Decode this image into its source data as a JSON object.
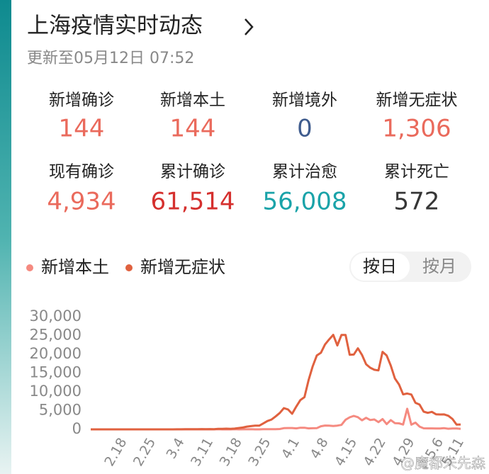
{
  "header": {
    "title": "上海疫情实时动态",
    "updated": "更新至05月12日 07:52"
  },
  "stats": [
    {
      "label": "新增确诊",
      "value": "144",
      "color": "#ea6a5c"
    },
    {
      "label": "新增本土",
      "value": "144",
      "color": "#ea6a5c"
    },
    {
      "label": "新增境外",
      "value": "0",
      "color": "#3f5c8e"
    },
    {
      "label": "新增无症状",
      "value": "1,306",
      "color": "#ea6a5c"
    },
    {
      "label": "现有确诊",
      "value": "4,934",
      "color": "#ea6a5c"
    },
    {
      "label": "累计确诊",
      "value": "61,514",
      "color": "#d5302e"
    },
    {
      "label": "累计治愈",
      "value": "56,008",
      "color": "#1aa3a9"
    },
    {
      "label": "累计死亡",
      "value": "572",
      "color": "#363636"
    }
  ],
  "toggle": {
    "options": [
      "按日",
      "按月"
    ]
  },
  "watermark": "@魔都朱先森",
  "chart_data": {
    "type": "line",
    "categories": [
      null,
      null,
      null,
      null,
      null,
      null,
      null,
      null,
      "2.18",
      null,
      null,
      null,
      null,
      null,
      null,
      "2.25",
      null,
      null,
      null,
      null,
      null,
      null,
      "3.4",
      null,
      null,
      null,
      null,
      null,
      null,
      "3.11",
      null,
      null,
      null,
      null,
      null,
      null,
      "3.18",
      null,
      null,
      null,
      null,
      null,
      null,
      "3.25",
      null,
      null,
      null,
      null,
      null,
      null,
      "4.1",
      null,
      null,
      null,
      null,
      null,
      null,
      "4.8",
      null,
      null,
      null,
      null,
      null,
      null,
      "4.15",
      null,
      null,
      null,
      null,
      null,
      null,
      "4.22",
      null,
      null,
      null,
      null,
      null,
      null,
      "4.29",
      null,
      null,
      null,
      null,
      null,
      null,
      "5.6",
      null,
      null,
      null,
      null,
      "5.11"
    ],
    "series": [
      {
        "name": "新增本土",
        "color": "#f58a80",
        "values": [
          0,
          0,
          0,
          0,
          0,
          0,
          0,
          0,
          0,
          0,
          0,
          0,
          0,
          0,
          0,
          0,
          0,
          0,
          0,
          1,
          0,
          2,
          3,
          0,
          3,
          4,
          3,
          4,
          11,
          5,
          1,
          41,
          9,
          5,
          8,
          57,
          8,
          17,
          24,
          31,
          4,
          4,
          29,
          38,
          45,
          50,
          96,
          326,
          355,
          358,
          260,
          438,
          425,
          268,
          311,
          322,
          824,
          1015,
          1006,
          914,
          994,
          1189,
          2573,
          3200,
          3590,
          3238,
          2417,
          3084,
          2494,
          2634,
          1931,
          2736,
          1401,
          2472,
          1661,
          1606,
          1292,
          5487,
          1249,
          1793,
          727,
          274,
          260,
          261,
          245,
          253,
          322,
          166,
          234,
          228,
          144
        ]
      },
      {
        "name": "新增无症状",
        "color": "#e0613f",
        "values": [
          0,
          0,
          0,
          0,
          0,
          0,
          0,
          0,
          0,
          0,
          1,
          1,
          0,
          0,
          2,
          1,
          0,
          0,
          1,
          1,
          3,
          14,
          16,
          55,
          45,
          51,
          62,
          76,
          64,
          78,
          64,
          128,
          130,
          197,
          150,
          202,
          366,
          492,
          734,
          865,
          977,
          979,
          1580,
          2231,
          2631,
          3450,
          4381,
          5656,
          5298,
          4144,
          6051,
          7788,
          8581,
          13086,
          16766,
          19660,
          20398,
          22609,
          23937,
          25173,
          22348,
          25141,
          25146,
          19872,
          19923,
          21582,
          19831,
          17332,
          16407,
          15861,
          15698,
          20634,
          19657,
          16983,
          13562,
          11956,
          9330,
          9545,
          9277,
          7084,
          6606,
          4722,
          4390,
          4651,
          4024,
          3961,
          3975,
          3625,
          2780,
          1259,
          1306
        ]
      }
    ],
    "ylim": [
      0,
      30000
    ],
    "yticks": [
      0,
      {
        "value": 5000,
        "label": "5,000"
      },
      {
        "value": 10000,
        "label": "10,000"
      },
      {
        "value": 15000,
        "label": "15,000"
      },
      {
        "value": 20000,
        "label": "20,000"
      },
      {
        "value": 25000,
        "label": "25,000"
      },
      {
        "value": 30000,
        "label": "30,000"
      }
    ],
    "legend": "top-left"
  }
}
